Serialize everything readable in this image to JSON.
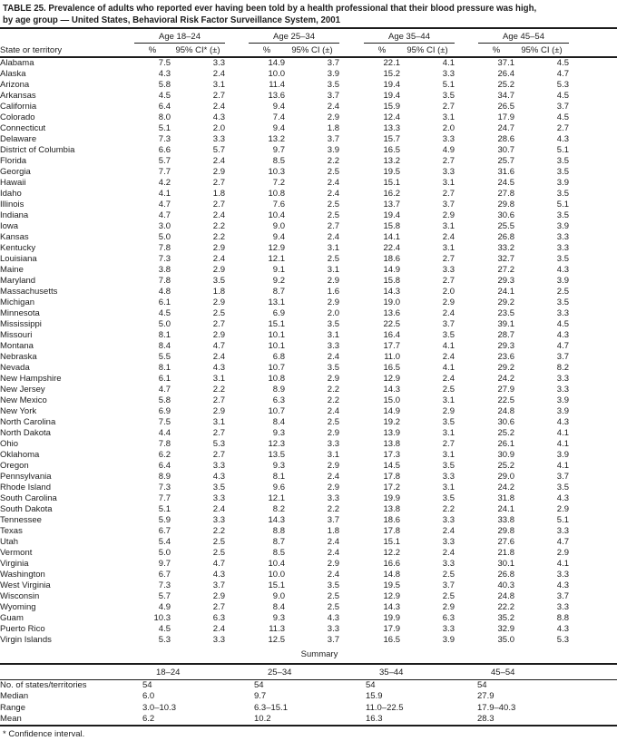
{
  "title": {
    "line1": "TABLE 25. Prevalence of adults who reported ever having been told by a health professional that their blood pressure was high,",
    "line2": "by age group — United States, Behavioral Risk Factor Surveillance System, 2001"
  },
  "table": {
    "state_col_header": "State or territory",
    "age_groups": [
      {
        "label": "Age 18–24",
        "pct_header": "%",
        "ci_header": "95% CI* (±)"
      },
      {
        "label": "Age 25–34",
        "pct_header": "%",
        "ci_header": "95% CI (±)"
      },
      {
        "label": "Age 35–44",
        "pct_header": "%",
        "ci_header": "95% CI (±)"
      },
      {
        "label": "Age 45–54",
        "pct_header": "%",
        "ci_header": "95% CI (±)"
      }
    ],
    "rows": [
      {
        "state": "Alabama",
        "values": [
          "7.5",
          "3.3",
          "14.9",
          "3.7",
          "22.1",
          "4.1",
          "37.1",
          "4.5"
        ]
      },
      {
        "state": "Alaska",
        "values": [
          "4.3",
          "2.4",
          "10.0",
          "3.9",
          "15.2",
          "3.3",
          "26.4",
          "4.7"
        ]
      },
      {
        "state": "Arizona",
        "values": [
          "5.8",
          "3.1",
          "11.4",
          "3.5",
          "19.4",
          "5.1",
          "25.2",
          "5.3"
        ]
      },
      {
        "state": "Arkansas",
        "values": [
          "4.5",
          "2.7",
          "13.6",
          "3.7",
          "19.4",
          "3.5",
          "34.7",
          "4.5"
        ]
      },
      {
        "state": "California",
        "values": [
          "6.4",
          "2.4",
          "9.4",
          "2.4",
          "15.9",
          "2.7",
          "26.5",
          "3.7"
        ]
      },
      {
        "state": "Colorado",
        "values": [
          "8.0",
          "4.3",
          "7.4",
          "2.9",
          "12.4",
          "3.1",
          "17.9",
          "4.5"
        ]
      },
      {
        "state": "Connecticut",
        "values": [
          "5.1",
          "2.0",
          "9.4",
          "1.8",
          "13.3",
          "2.0",
          "24.7",
          "2.7"
        ]
      },
      {
        "state": "Delaware",
        "values": [
          "7.3",
          "3.3",
          "13.2",
          "3.7",
          "15.7",
          "3.3",
          "28.6",
          "4.3"
        ]
      },
      {
        "state": "District of Columbia",
        "values": [
          "6.6",
          "5.7",
          "9.7",
          "3.9",
          "16.5",
          "4.9",
          "30.7",
          "5.1"
        ]
      },
      {
        "state": "Florida",
        "values": [
          "5.7",
          "2.4",
          "8.5",
          "2.2",
          "13.2",
          "2.7",
          "25.7",
          "3.5"
        ]
      },
      {
        "state": "Georgia",
        "values": [
          "7.7",
          "2.9",
          "10.3",
          "2.5",
          "19.5",
          "3.3",
          "31.6",
          "3.5"
        ]
      },
      {
        "state": "Hawaii",
        "values": [
          "4.2",
          "2.7",
          "7.2",
          "2.4",
          "15.1",
          "3.1",
          "24.5",
          "3.9"
        ]
      },
      {
        "state": "Idaho",
        "values": [
          "4.1",
          "1.8",
          "10.8",
          "2.4",
          "16.2",
          "2.7",
          "27.8",
          "3.5"
        ]
      },
      {
        "state": "Illinois",
        "values": [
          "4.7",
          "2.7",
          "7.6",
          "2.5",
          "13.7",
          "3.7",
          "29.8",
          "5.1"
        ]
      },
      {
        "state": "Indiana",
        "values": [
          "4.7",
          "2.4",
          "10.4",
          "2.5",
          "19.4",
          "2.9",
          "30.6",
          "3.5"
        ]
      },
      {
        "state": "Iowa",
        "values": [
          "3.0",
          "2.2",
          "9.0",
          "2.7",
          "15.8",
          "3.1",
          "25.5",
          "3.9"
        ]
      },
      {
        "state": "Kansas",
        "values": [
          "5.0",
          "2.2",
          "9.4",
          "2.4",
          "14.1",
          "2.4",
          "26.8",
          "3.3"
        ]
      },
      {
        "state": "Kentucky",
        "values": [
          "7.8",
          "2.9",
          "12.9",
          "3.1",
          "22.4",
          "3.1",
          "33.2",
          "3.3"
        ]
      },
      {
        "state": "Louisiana",
        "values": [
          "7.3",
          "2.4",
          "12.1",
          "2.5",
          "18.6",
          "2.7",
          "32.7",
          "3.5"
        ]
      },
      {
        "state": "Maine",
        "values": [
          "3.8",
          "2.9",
          "9.1",
          "3.1",
          "14.9",
          "3.3",
          "27.2",
          "4.3"
        ]
      },
      {
        "state": "Maryland",
        "values": [
          "7.8",
          "3.5",
          "9.2",
          "2.9",
          "15.8",
          "2.7",
          "29.3",
          "3.9"
        ]
      },
      {
        "state": "Massachusetts",
        "values": [
          "4.8",
          "1.8",
          "8.7",
          "1.6",
          "14.3",
          "2.0",
          "24.1",
          "2.5"
        ]
      },
      {
        "state": "Michigan",
        "values": [
          "6.1",
          "2.9",
          "13.1",
          "2.9",
          "19.0",
          "2.9",
          "29.2",
          "3.5"
        ]
      },
      {
        "state": "Minnesota",
        "values": [
          "4.5",
          "2.5",
          "6.9",
          "2.0",
          "13.6",
          "2.4",
          "23.5",
          "3.3"
        ]
      },
      {
        "state": "Mississippi",
        "values": [
          "5.0",
          "2.7",
          "15.1",
          "3.5",
          "22.5",
          "3.7",
          "39.1",
          "4.5"
        ]
      },
      {
        "state": "Missouri",
        "values": [
          "8.1",
          "2.9",
          "10.1",
          "3.1",
          "16.4",
          "3.5",
          "28.7",
          "4.3"
        ]
      },
      {
        "state": "Montana",
        "values": [
          "8.4",
          "4.7",
          "10.1",
          "3.3",
          "17.7",
          "4.1",
          "29.3",
          "4.7"
        ]
      },
      {
        "state": "Nebraska",
        "values": [
          "5.5",
          "2.4",
          "6.8",
          "2.4",
          "11.0",
          "2.4",
          "23.6",
          "3.7"
        ]
      },
      {
        "state": "Nevada",
        "values": [
          "8.1",
          "4.3",
          "10.7",
          "3.5",
          "16.5",
          "4.1",
          "29.2",
          "8.2"
        ]
      },
      {
        "state": "New Hampshire",
        "values": [
          "6.1",
          "3.1",
          "10.8",
          "2.9",
          "12.9",
          "2.4",
          "24.2",
          "3.3"
        ]
      },
      {
        "state": "New Jersey",
        "values": [
          "4.7",
          "2.2",
          "8.9",
          "2.2",
          "14.3",
          "2.5",
          "27.9",
          "3.3"
        ]
      },
      {
        "state": "New Mexico",
        "values": [
          "5.8",
          "2.7",
          "6.3",
          "2.2",
          "15.0",
          "3.1",
          "22.5",
          "3.9"
        ]
      },
      {
        "state": "New York",
        "values": [
          "6.9",
          "2.9",
          "10.7",
          "2.4",
          "14.9",
          "2.9",
          "24.8",
          "3.9"
        ]
      },
      {
        "state": "North Carolina",
        "values": [
          "7.5",
          "3.1",
          "8.4",
          "2.5",
          "19.2",
          "3.5",
          "30.6",
          "4.3"
        ]
      },
      {
        "state": "North Dakota",
        "values": [
          "4.4",
          "2.7",
          "9.3",
          "2.9",
          "13.9",
          "3.1",
          "25.2",
          "4.1"
        ]
      },
      {
        "state": "Ohio",
        "values": [
          "7.8",
          "5.3",
          "12.3",
          "3.3",
          "13.8",
          "2.7",
          "26.1",
          "4.1"
        ]
      },
      {
        "state": "Oklahoma",
        "values": [
          "6.2",
          "2.7",
          "13.5",
          "3.1",
          "17.3",
          "3.1",
          "30.9",
          "3.9"
        ]
      },
      {
        "state": "Oregon",
        "values": [
          "6.4",
          "3.3",
          "9.3",
          "2.9",
          "14.5",
          "3.5",
          "25.2",
          "4.1"
        ]
      },
      {
        "state": "Pennsylvania",
        "values": [
          "8.9",
          "4.3",
          "8.1",
          "2.4",
          "17.8",
          "3.3",
          "29.0",
          "3.7"
        ]
      },
      {
        "state": "Rhode Island",
        "values": [
          "7.3",
          "3.5",
          "9.6",
          "2.9",
          "17.2",
          "3.1",
          "24.2",
          "3.5"
        ]
      },
      {
        "state": "South Carolina",
        "values": [
          "7.7",
          "3.3",
          "12.1",
          "3.3",
          "19.9",
          "3.5",
          "31.8",
          "4.3"
        ]
      },
      {
        "state": "South Dakota",
        "values": [
          "5.1",
          "2.4",
          "8.2",
          "2.2",
          "13.8",
          "2.2",
          "24.1",
          "2.9"
        ]
      },
      {
        "state": "Tennessee",
        "values": [
          "5.9",
          "3.3",
          "14.3",
          "3.7",
          "18.6",
          "3.3",
          "33.8",
          "5.1"
        ]
      },
      {
        "state": "Texas",
        "values": [
          "6.7",
          "2.2",
          "8.8",
          "1.8",
          "17.8",
          "2.4",
          "29.8",
          "3.3"
        ]
      },
      {
        "state": "Utah",
        "values": [
          "5.4",
          "2.5",
          "8.7",
          "2.4",
          "15.1",
          "3.3",
          "27.6",
          "4.7"
        ]
      },
      {
        "state": "Vermont",
        "values": [
          "5.0",
          "2.5",
          "8.5",
          "2.4",
          "12.2",
          "2.4",
          "21.8",
          "2.9"
        ]
      },
      {
        "state": "Virginia",
        "values": [
          "9.7",
          "4.7",
          "10.4",
          "2.9",
          "16.6",
          "3.3",
          "30.1",
          "4.1"
        ]
      },
      {
        "state": "Washington",
        "values": [
          "6.7",
          "4.3",
          "10.0",
          "2.4",
          "14.8",
          "2.5",
          "26.8",
          "3.3"
        ]
      },
      {
        "state": "West Virginia",
        "values": [
          "7.3",
          "3.7",
          "15.1",
          "3.5",
          "19.5",
          "3.7",
          "40.3",
          "4.3"
        ]
      },
      {
        "state": "Wisconsin",
        "values": [
          "5.7",
          "2.9",
          "9.0",
          "2.5",
          "12.9",
          "2.5",
          "24.8",
          "3.7"
        ]
      },
      {
        "state": "Wyoming",
        "values": [
          "4.9",
          "2.7",
          "8.4",
          "2.5",
          "14.3",
          "2.9",
          "22.2",
          "3.3"
        ]
      },
      {
        "state": "Guam",
        "values": [
          "10.3",
          "6.3",
          "9.3",
          "4.3",
          "19.9",
          "6.3",
          "35.2",
          "8.8"
        ]
      },
      {
        "state": "Puerto Rico",
        "values": [
          "4.5",
          "2.4",
          "11.3",
          "3.3",
          "17.9",
          "3.3",
          "32.9",
          "4.3"
        ]
      },
      {
        "state": "Virgin Islands",
        "values": [
          "5.3",
          "3.3",
          "12.5",
          "3.7",
          "16.5",
          "3.9",
          "35.0",
          "5.3"
        ]
      }
    ]
  },
  "summary": {
    "title": "Summary",
    "col_headers": [
      "18–24",
      "25–34",
      "35–44",
      "45–54"
    ],
    "rows": [
      {
        "label": "No. of states/territories",
        "values": [
          "54",
          "54",
          "54",
          "54"
        ]
      },
      {
        "label": "Median",
        "values": [
          "6.0",
          "9.7",
          "15.9",
          "27.9"
        ]
      },
      {
        "label": "Range",
        "values": [
          "3.0–10.3",
          "6.3–15.1",
          "11.0–22.5",
          "17.9–40.3"
        ]
      },
      {
        "label": "Mean",
        "values": [
          "6.2",
          "10.2",
          "16.3",
          "28.3"
        ]
      }
    ]
  },
  "footnote": "* Confidence interval."
}
